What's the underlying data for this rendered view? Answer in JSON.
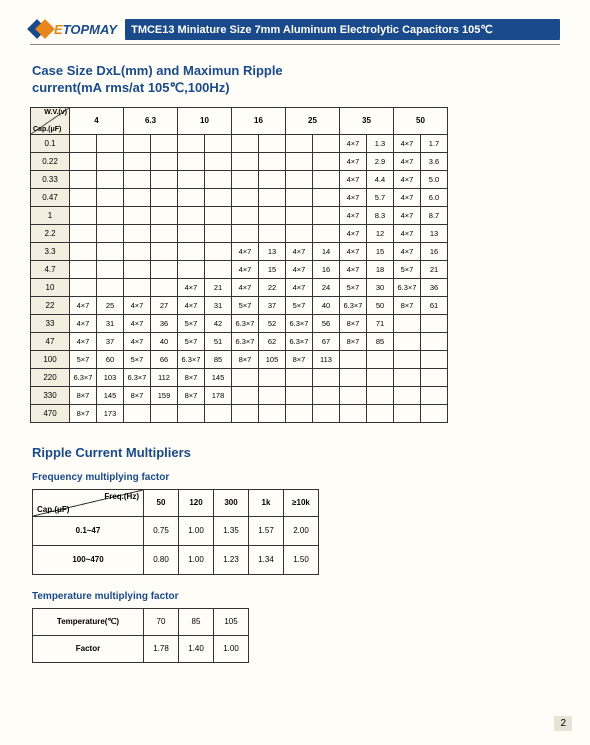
{
  "brand": {
    "name_pre": "E",
    "name_post": "TOPMAY"
  },
  "title_bar": "TMCE13 Miniature Size 7mm Aluminum Electrolytic Capacitors 105℃",
  "section1_title_l1": "Case Size DxL(mm) and Maximun Ripple",
  "section1_title_l2": "current(mA rms/at 105℃,100Hz)",
  "section2_title": "Ripple Current Multipliers",
  "sub1": "Frequency multiplying factor",
  "sub2": "Temperature multiplying factor",
  "page_number": "2",
  "corner_wv": "W.V.(v)",
  "corner_cap": "Cap.(μF)",
  "volt_headers": [
    "4",
    "6.3",
    "10",
    "16",
    "25",
    "35",
    "50"
  ],
  "cap_rows": [
    "0.1",
    "0.22",
    "0.33",
    "0.47",
    "1",
    "2.2",
    "3.3",
    "4.7",
    "10",
    "22",
    "33",
    "47",
    "100",
    "220",
    "330",
    "470"
  ],
  "cells": {
    "0.1": {
      "35": [
        "4×7",
        "1.3"
      ],
      "50": [
        "4×7",
        "1.7"
      ]
    },
    "0.22": {
      "35": [
        "4×7",
        "2.9"
      ],
      "50": [
        "4×7",
        "3.6"
      ]
    },
    "0.33": {
      "35": [
        "4×7",
        "4.4"
      ],
      "50": [
        "4×7",
        "5.0"
      ]
    },
    "0.47": {
      "35": [
        "4×7",
        "5.7"
      ],
      "50": [
        "4×7",
        "6.0"
      ]
    },
    "1": {
      "35": [
        "4×7",
        "8.3"
      ],
      "50": [
        "4×7",
        "8.7"
      ]
    },
    "2.2": {
      "35": [
        "4×7",
        "12"
      ],
      "50": [
        "4×7",
        "13"
      ]
    },
    "3.3": {
      "16": [
        "4×7",
        "13"
      ],
      "25": [
        "4×7",
        "14"
      ],
      "35": [
        "4×7",
        "15"
      ],
      "50": [
        "4×7",
        "16"
      ]
    },
    "4.7": {
      "16": [
        "4×7",
        "15"
      ],
      "25": [
        "4×7",
        "16"
      ],
      "35": [
        "4×7",
        "18"
      ],
      "50": [
        "5×7",
        "21"
      ]
    },
    "10": {
      "10": [
        "4×7",
        "21"
      ],
      "16": [
        "4×7",
        "22"
      ],
      "25": [
        "4×7",
        "24"
      ],
      "35": [
        "5×7",
        "30"
      ],
      "50": [
        "6.3×7",
        "36"
      ]
    },
    "22": {
      "4": [
        "4×7",
        "25"
      ],
      "6.3": [
        "4×7",
        "27"
      ],
      "10": [
        "4×7",
        "31"
      ],
      "16": [
        "5×7",
        "37"
      ],
      "25": [
        "5×7",
        "40"
      ],
      "35": [
        "6.3×7",
        "50"
      ],
      "50": [
        "8×7",
        "61"
      ]
    },
    "33": {
      "4": [
        "4×7",
        "31"
      ],
      "6.3": [
        "4×7",
        "36"
      ],
      "10": [
        "5×7",
        "42"
      ],
      "16": [
        "6.3×7",
        "52"
      ],
      "25": [
        "6.3×7",
        "56"
      ],
      "35": [
        "8×7",
        "71"
      ]
    },
    "47": {
      "4": [
        "4×7",
        "37"
      ],
      "6.3": [
        "4×7",
        "40"
      ],
      "10": [
        "5×7",
        "51"
      ],
      "16": [
        "6.3×7",
        "62"
      ],
      "25": [
        "6.3×7",
        "67"
      ],
      "35": [
        "8×7",
        "85"
      ]
    },
    "100": {
      "4": [
        "5×7",
        "60"
      ],
      "6.3": [
        "5×7",
        "66"
      ],
      "10": [
        "6.3×7",
        "85"
      ],
      "16": [
        "8×7",
        "105"
      ],
      "25": [
        "8×7",
        "113"
      ]
    },
    "220": {
      "4": [
        "6.3×7",
        "103"
      ],
      "6.3": [
        "6.3×7",
        "112"
      ],
      "10": [
        "8×7",
        "145"
      ]
    },
    "330": {
      "4": [
        "8×7",
        "145"
      ],
      "6.3": [
        "8×7",
        "159"
      ],
      "10": [
        "8×7",
        "178"
      ]
    },
    "470": {
      "4": [
        "8×7",
        "173"
      ]
    }
  },
  "freq_corner_top": "Freq.(Hz)",
  "freq_corner_bot": "Cap.(μF)",
  "freq_cols": [
    "50",
    "120",
    "300",
    "1k",
    "≥10k"
  ],
  "freq_rows": [
    {
      "label": "0.1~47",
      "vals": [
        "0.75",
        "1.00",
        "1.35",
        "1.57",
        "2.00"
      ]
    },
    {
      "label": "100~470",
      "vals": [
        "0.80",
        "1.00",
        "1.23",
        "1.34",
        "1.50"
      ]
    }
  ],
  "temp_label": "Temperature(℃)",
  "temp_cols": [
    "70",
    "85",
    "105"
  ],
  "temp_factor_label": "Factor",
  "temp_factors": [
    "1.78",
    "1.40",
    "1.00"
  ]
}
